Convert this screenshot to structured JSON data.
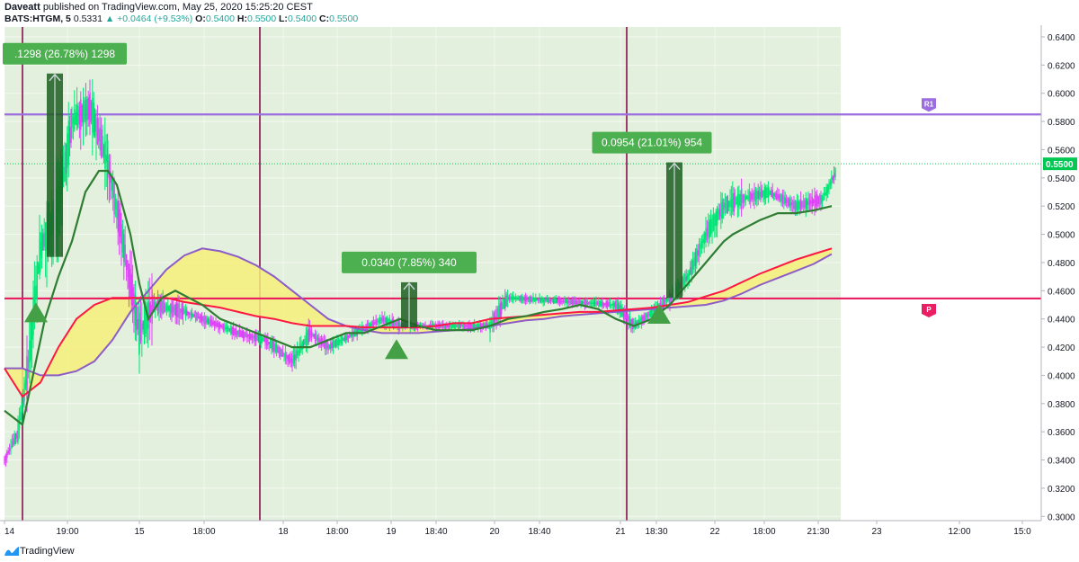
{
  "header": {
    "author": "Daveatt",
    "published": "published on TradingView.com, May 25, 2020 15:25:20 CEST",
    "symbol": "BATS:HTGM, 5",
    "price": "0.5331",
    "change": "▲ +0.0464 (+9.53%)",
    "o_label": "O:",
    "o_value": "0.5400",
    "h_label": "H:",
    "h_value": "0.5500",
    "l_label": "L:",
    "l_value": "0.5400",
    "c_label": "C:",
    "c_value": "0.5500"
  },
  "footer": {
    "brand": "TradingView",
    "logo_icon": "tradingview-logo-icon"
  },
  "colors": {
    "up_candle": "#00e676",
    "down_candle": "#e040fb",
    "green_ma": "#2e7d32",
    "red_ma": "#ff1744",
    "purple_ma": "#8e5cc7",
    "cloud_fill": "#f6f07a",
    "session_bg": "#e3f0dd",
    "r1_line": "#9c6ce0",
    "p_line": "#e91e63",
    "vline": "#880e4f",
    "measure": "#4caf50",
    "price_tag": "#00c853"
  },
  "chart_data": {
    "type": "candlestick",
    "symbol": "BATS:HTGM",
    "interval": "5",
    "ylim": [
      0.297,
      0.647
    ],
    "y_ticks": [
      "0.3000",
      "0.3200",
      "0.3400",
      "0.3600",
      "0.3800",
      "0.4000",
      "0.4200",
      "0.4400",
      "0.4600",
      "0.4800",
      "0.5000",
      "0.5200",
      "0.5400",
      "0.5600",
      "0.5800",
      "0.6000",
      "0.6200",
      "0.6400"
    ],
    "current_price": "0.5500",
    "x_ticks": [
      "14",
      "19:00",
      "15",
      "18:00",
      "18",
      "18:00",
      "19",
      "18:40",
      "20",
      "18:40",
      "21",
      "18:30",
      "22",
      "18:00",
      "21:30",
      "23",
      "12:00",
      "15:0"
    ],
    "x_tick_positions": [
      0,
      70,
      150,
      222,
      310,
      370,
      430,
      480,
      545,
      595,
      685,
      725,
      790,
      845,
      905,
      970,
      1062,
      1132
    ],
    "price_window": [
      0,
      920
    ],
    "session_markers": [
      20,
      284,
      692
    ],
    "levels": [
      {
        "name": "R1",
        "price": 0.585
      },
      {
        "name": "P",
        "price": 0.4545
      }
    ],
    "green_ma": [
      [
        0,
        0.375
      ],
      [
        10,
        0.37
      ],
      [
        20,
        0.365
      ],
      [
        30,
        0.395
      ],
      [
        45,
        0.44
      ],
      [
        60,
        0.47
      ],
      [
        75,
        0.495
      ],
      [
        90,
        0.53
      ],
      [
        105,
        0.545
      ],
      [
        115,
        0.545
      ],
      [
        125,
        0.535
      ],
      [
        140,
        0.5
      ],
      [
        150,
        0.465
      ],
      [
        160,
        0.44
      ],
      [
        175,
        0.455
      ],
      [
        190,
        0.46
      ],
      [
        205,
        0.455
      ],
      [
        220,
        0.45
      ],
      [
        240,
        0.44
      ],
      [
        260,
        0.435
      ],
      [
        280,
        0.43
      ],
      [
        300,
        0.425
      ],
      [
        320,
        0.42
      ],
      [
        340,
        0.42
      ],
      [
        360,
        0.425
      ],
      [
        380,
        0.43
      ],
      [
        400,
        0.43
      ],
      [
        420,
        0.435
      ],
      [
        440,
        0.44
      ],
      [
        460,
        0.435
      ],
      [
        480,
        0.432
      ],
      [
        500,
        0.432
      ],
      [
        520,
        0.432
      ],
      [
        540,
        0.435
      ],
      [
        560,
        0.44
      ],
      [
        580,
        0.442
      ],
      [
        600,
        0.445
      ],
      [
        620,
        0.447
      ],
      [
        640,
        0.45
      ],
      [
        660,
        0.447
      ],
      [
        680,
        0.44
      ],
      [
        700,
        0.435
      ],
      [
        720,
        0.44
      ],
      [
        740,
        0.45
      ],
      [
        760,
        0.465
      ],
      [
        780,
        0.48
      ],
      [
        800,
        0.495
      ],
      [
        810,
        0.5
      ],
      [
        825,
        0.505
      ],
      [
        840,
        0.51
      ],
      [
        860,
        0.515
      ],
      [
        880,
        0.515
      ],
      [
        900,
        0.517
      ],
      [
        920,
        0.52
      ]
    ],
    "red_ma": [
      [
        0,
        0.405
      ],
      [
        20,
        0.385
      ],
      [
        40,
        0.395
      ],
      [
        60,
        0.42
      ],
      [
        80,
        0.44
      ],
      [
        100,
        0.45
      ],
      [
        120,
        0.455
      ],
      [
        140,
        0.455
      ],
      [
        160,
        0.455
      ],
      [
        180,
        0.455
      ],
      [
        200,
        0.452
      ],
      [
        220,
        0.45
      ],
      [
        240,
        0.448
      ],
      [
        260,
        0.445
      ],
      [
        280,
        0.442
      ],
      [
        300,
        0.44
      ],
      [
        320,
        0.437
      ],
      [
        340,
        0.435
      ],
      [
        360,
        0.435
      ],
      [
        380,
        0.435
      ],
      [
        400,
        0.434
      ],
      [
        420,
        0.434
      ],
      [
        440,
        0.434
      ],
      [
        460,
        0.434
      ],
      [
        480,
        0.435
      ],
      [
        500,
        0.437
      ],
      [
        520,
        0.437
      ],
      [
        540,
        0.44
      ],
      [
        560,
        0.441
      ],
      [
        580,
        0.442
      ],
      [
        600,
        0.443
      ],
      [
        620,
        0.444
      ],
      [
        640,
        0.445
      ],
      [
        660,
        0.445
      ],
      [
        680,
        0.446
      ],
      [
        700,
        0.447
      ],
      [
        720,
        0.448
      ],
      [
        740,
        0.45
      ],
      [
        760,
        0.452
      ],
      [
        780,
        0.456
      ],
      [
        800,
        0.46
      ],
      [
        820,
        0.466
      ],
      [
        840,
        0.472
      ],
      [
        860,
        0.477
      ],
      [
        880,
        0.482
      ],
      [
        900,
        0.486
      ],
      [
        920,
        0.49
      ]
    ],
    "purple_ma": [
      [
        0,
        0.405
      ],
      [
        20,
        0.405
      ],
      [
        40,
        0.4
      ],
      [
        60,
        0.4
      ],
      [
        80,
        0.403
      ],
      [
        100,
        0.41
      ],
      [
        120,
        0.425
      ],
      [
        140,
        0.445
      ],
      [
        160,
        0.46
      ],
      [
        180,
        0.475
      ],
      [
        200,
        0.485
      ],
      [
        220,
        0.49
      ],
      [
        240,
        0.488
      ],
      [
        260,
        0.484
      ],
      [
        280,
        0.478
      ],
      [
        300,
        0.47
      ],
      [
        320,
        0.46
      ],
      [
        340,
        0.45
      ],
      [
        360,
        0.44
      ],
      [
        380,
        0.435
      ],
      [
        400,
        0.432
      ],
      [
        420,
        0.43
      ],
      [
        440,
        0.43
      ],
      [
        460,
        0.43
      ],
      [
        480,
        0.431
      ],
      [
        500,
        0.432
      ],
      [
        520,
        0.433
      ],
      [
        540,
        0.435
      ],
      [
        560,
        0.437
      ],
      [
        580,
        0.439
      ],
      [
        600,
        0.44
      ],
      [
        620,
        0.442
      ],
      [
        640,
        0.443
      ],
      [
        660,
        0.444
      ],
      [
        680,
        0.445
      ],
      [
        700,
        0.446
      ],
      [
        720,
        0.447
      ],
      [
        740,
        0.448
      ],
      [
        760,
        0.449
      ],
      [
        780,
        0.45
      ],
      [
        800,
        0.453
      ],
      [
        820,
        0.458
      ],
      [
        840,
        0.464
      ],
      [
        860,
        0.469
      ],
      [
        880,
        0.474
      ],
      [
        900,
        0.479
      ],
      [
        920,
        0.486
      ]
    ],
    "segments": [
      {
        "x0": 0,
        "x1": 15,
        "p0": 0.34,
        "p1": 0.36,
        "vol": 0.01,
        "bias": 0.2
      },
      {
        "x0": 15,
        "x1": 25,
        "p0": 0.36,
        "p1": 0.4,
        "vol": 0.02,
        "bias": 0.7
      },
      {
        "x0": 25,
        "x1": 40,
        "p0": 0.4,
        "p1": 0.49,
        "vol": 0.04,
        "bias": 0.75
      },
      {
        "x0": 40,
        "x1": 60,
        "p0": 0.49,
        "p1": 0.52,
        "vol": 0.05,
        "bias": 0.65
      },
      {
        "x0": 60,
        "x1": 75,
        "p0": 0.52,
        "p1": 0.58,
        "vol": 0.045,
        "bias": 0.7
      },
      {
        "x0": 75,
        "x1": 95,
        "p0": 0.58,
        "p1": 0.59,
        "vol": 0.03,
        "bias": 0.55
      },
      {
        "x0": 95,
        "x1": 115,
        "p0": 0.59,
        "p1": 0.55,
        "vol": 0.035,
        "bias": 0.45
      },
      {
        "x0": 115,
        "x1": 130,
        "p0": 0.55,
        "p1": 0.5,
        "vol": 0.035,
        "bias": 0.3
      },
      {
        "x0": 130,
        "x1": 150,
        "p0": 0.5,
        "p1": 0.43,
        "vol": 0.035,
        "bias": 0.25
      },
      {
        "x0": 150,
        "x1": 165,
        "p0": 0.43,
        "p1": 0.45,
        "vol": 0.04,
        "bias": 0.45
      },
      {
        "x0": 165,
        "x1": 200,
        "p0": 0.45,
        "p1": 0.445,
        "vol": 0.015,
        "bias": 0.4
      },
      {
        "x0": 200,
        "x1": 260,
        "p0": 0.445,
        "p1": 0.43,
        "vol": 0.008,
        "bias": 0.35
      },
      {
        "x0": 260,
        "x1": 290,
        "p0": 0.43,
        "p1": 0.425,
        "vol": 0.008,
        "bias": 0.4
      },
      {
        "x0": 290,
        "x1": 320,
        "p0": 0.425,
        "p1": 0.41,
        "vol": 0.01,
        "bias": 0.35
      },
      {
        "x0": 320,
        "x1": 340,
        "p0": 0.41,
        "p1": 0.43,
        "vol": 0.015,
        "bias": 0.6
      },
      {
        "x0": 340,
        "x1": 360,
        "p0": 0.43,
        "p1": 0.42,
        "vol": 0.01,
        "bias": 0.45
      },
      {
        "x0": 360,
        "x1": 420,
        "p0": 0.42,
        "p1": 0.44,
        "vol": 0.008,
        "bias": 0.6
      },
      {
        "x0": 420,
        "x1": 440,
        "p0": 0.44,
        "p1": 0.435,
        "vol": 0.01,
        "bias": 0.5
      },
      {
        "x0": 440,
        "x1": 540,
        "p0": 0.435,
        "p1": 0.435,
        "vol": 0.006,
        "bias": 0.5
      },
      {
        "x0": 540,
        "x1": 560,
        "p0": 0.435,
        "p1": 0.455,
        "vol": 0.015,
        "bias": 0.7
      },
      {
        "x0": 560,
        "x1": 680,
        "p0": 0.455,
        "p1": 0.45,
        "vol": 0.006,
        "bias": 0.5
      },
      {
        "x0": 680,
        "x1": 700,
        "p0": 0.45,
        "p1": 0.435,
        "vol": 0.01,
        "bias": 0.3
      },
      {
        "x0": 700,
        "x1": 740,
        "p0": 0.435,
        "p1": 0.455,
        "vol": 0.008,
        "bias": 0.6
      },
      {
        "x0": 740,
        "x1": 760,
        "p0": 0.455,
        "p1": 0.47,
        "vol": 0.012,
        "bias": 0.75
      },
      {
        "x0": 760,
        "x1": 780,
        "p0": 0.47,
        "p1": 0.5,
        "vol": 0.015,
        "bias": 0.75
      },
      {
        "x0": 780,
        "x1": 800,
        "p0": 0.5,
        "p1": 0.52,
        "vol": 0.018,
        "bias": 0.7
      },
      {
        "x0": 800,
        "x1": 820,
        "p0": 0.52,
        "p1": 0.525,
        "vol": 0.018,
        "bias": 0.55
      },
      {
        "x0": 820,
        "x1": 850,
        "p0": 0.525,
        "p1": 0.53,
        "vol": 0.012,
        "bias": 0.55
      },
      {
        "x0": 850,
        "x1": 880,
        "p0": 0.53,
        "p1": 0.52,
        "vol": 0.01,
        "bias": 0.45
      },
      {
        "x0": 880,
        "x1": 910,
        "p0": 0.52,
        "p1": 0.525,
        "vol": 0.012,
        "bias": 0.5
      },
      {
        "x0": 910,
        "x1": 925,
        "p0": 0.525,
        "p1": 0.545,
        "vol": 0.01,
        "bias": 0.7
      }
    ],
    "signals": [
      {
        "type": "buy",
        "x": 35,
        "price": 0.444
      },
      {
        "type": "buy",
        "x": 436,
        "price": 0.418
      },
      {
        "type": "buy",
        "x": 728,
        "price": 0.443
      }
    ],
    "measures": [
      {
        "label": ".1298 (26.78%) 1298",
        "x": 56,
        "from": 0.484,
        "to": 0.614
      },
      {
        "label": "0.0340 (7.85%) 340",
        "x": 450,
        "from": 0.434,
        "to": 0.466
      },
      {
        "label": "0.0954 (21.01%) 954",
        "x": 745,
        "from": 0.455,
        "to": 0.551
      }
    ]
  }
}
